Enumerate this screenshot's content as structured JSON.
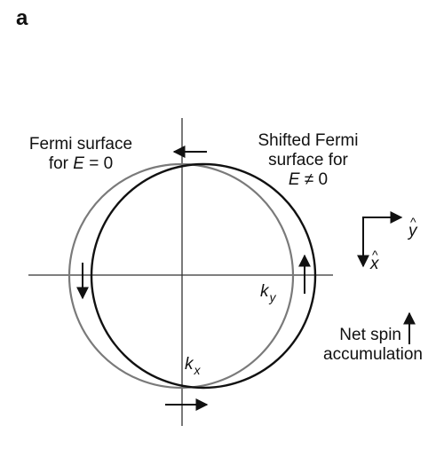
{
  "panel_label": "a",
  "labels": {
    "fermi_surface_line1": "Fermi surface",
    "fermi_surface_line2_prefix": "for ",
    "fermi_surface_var": "E",
    "fermi_surface_line2_suffix": " = 0",
    "shifted_line1": "Shifted Fermi",
    "shifted_line2": "surface for",
    "shifted_var": "E",
    "shifted_suffix": " ≠ 0",
    "ky_var": "k",
    "ky_sub": "y",
    "kx_var": "k",
    "kx_sub": "x",
    "y_axis_label": "y",
    "x_axis_label": "x",
    "net_spin_line1": "Net spin",
    "net_spin_line2": "accumulation"
  },
  "colors": {
    "equilibrium_circle": "#7a7a7a",
    "shifted_circle": "#111111",
    "axes": "#333333",
    "arrows": "#111111"
  }
}
